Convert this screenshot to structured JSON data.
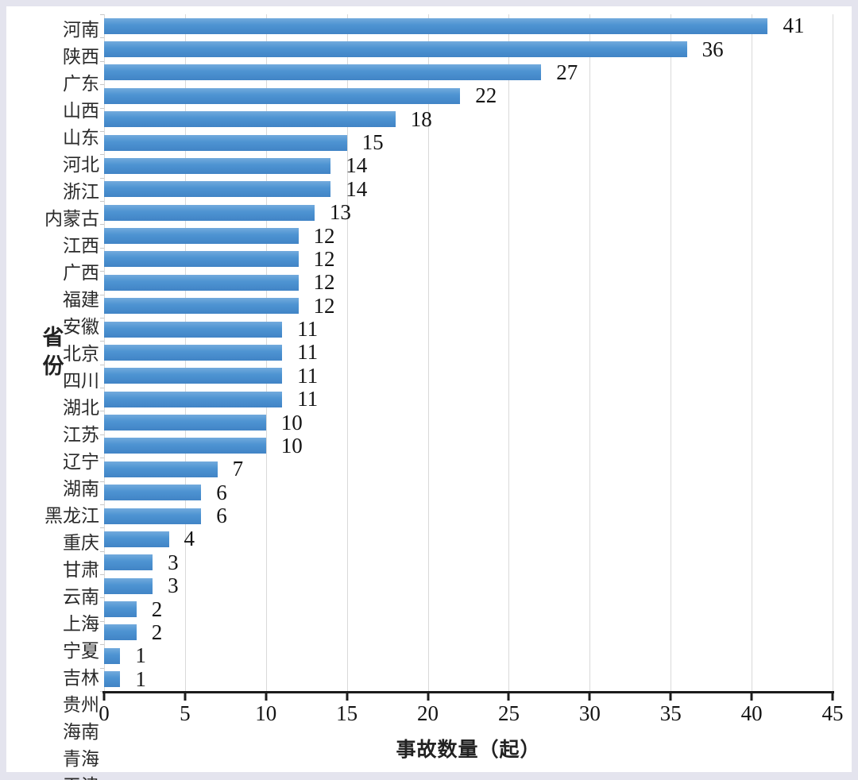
{
  "page": {
    "frame_color": "#e4e4ee",
    "panel_color": "#ffffff"
  },
  "chart_data": {
    "type": "bar",
    "orientation": "horizontal",
    "title": "",
    "xlabel": "事故数量（起）",
    "ylabel": "省份",
    "xlim": [
      0,
      45
    ],
    "xticks": [
      0,
      5,
      10,
      15,
      20,
      25,
      30,
      35,
      40,
      45
    ],
    "grid": "vertical-gridlines-on",
    "legend": "none",
    "bar_color": "#4e94d2",
    "gridline_color": "#d9d9d9",
    "axis_color": "#1c1c1c",
    "data_labels_shown": true,
    "categories": [
      "河南",
      "陕西",
      "广东",
      "山西",
      "山东",
      "河北",
      "浙江",
      "内蒙古",
      "江西",
      "广西",
      "福建",
      "安徽",
      "北京",
      "四川",
      "湖北",
      "江苏",
      "辽宁",
      "湖南",
      "黑龙江",
      "重庆",
      "甘肃",
      "云南",
      "上海",
      "宁夏",
      "吉林",
      "贵州",
      "海南",
      "青海",
      "天津"
    ],
    "values": [
      41,
      36,
      27,
      22,
      18,
      15,
      14,
      14,
      13,
      12,
      12,
      12,
      12,
      11,
      11,
      11,
      11,
      10,
      10,
      7,
      6,
      6,
      4,
      3,
      3,
      2,
      2,
      1,
      1
    ]
  }
}
